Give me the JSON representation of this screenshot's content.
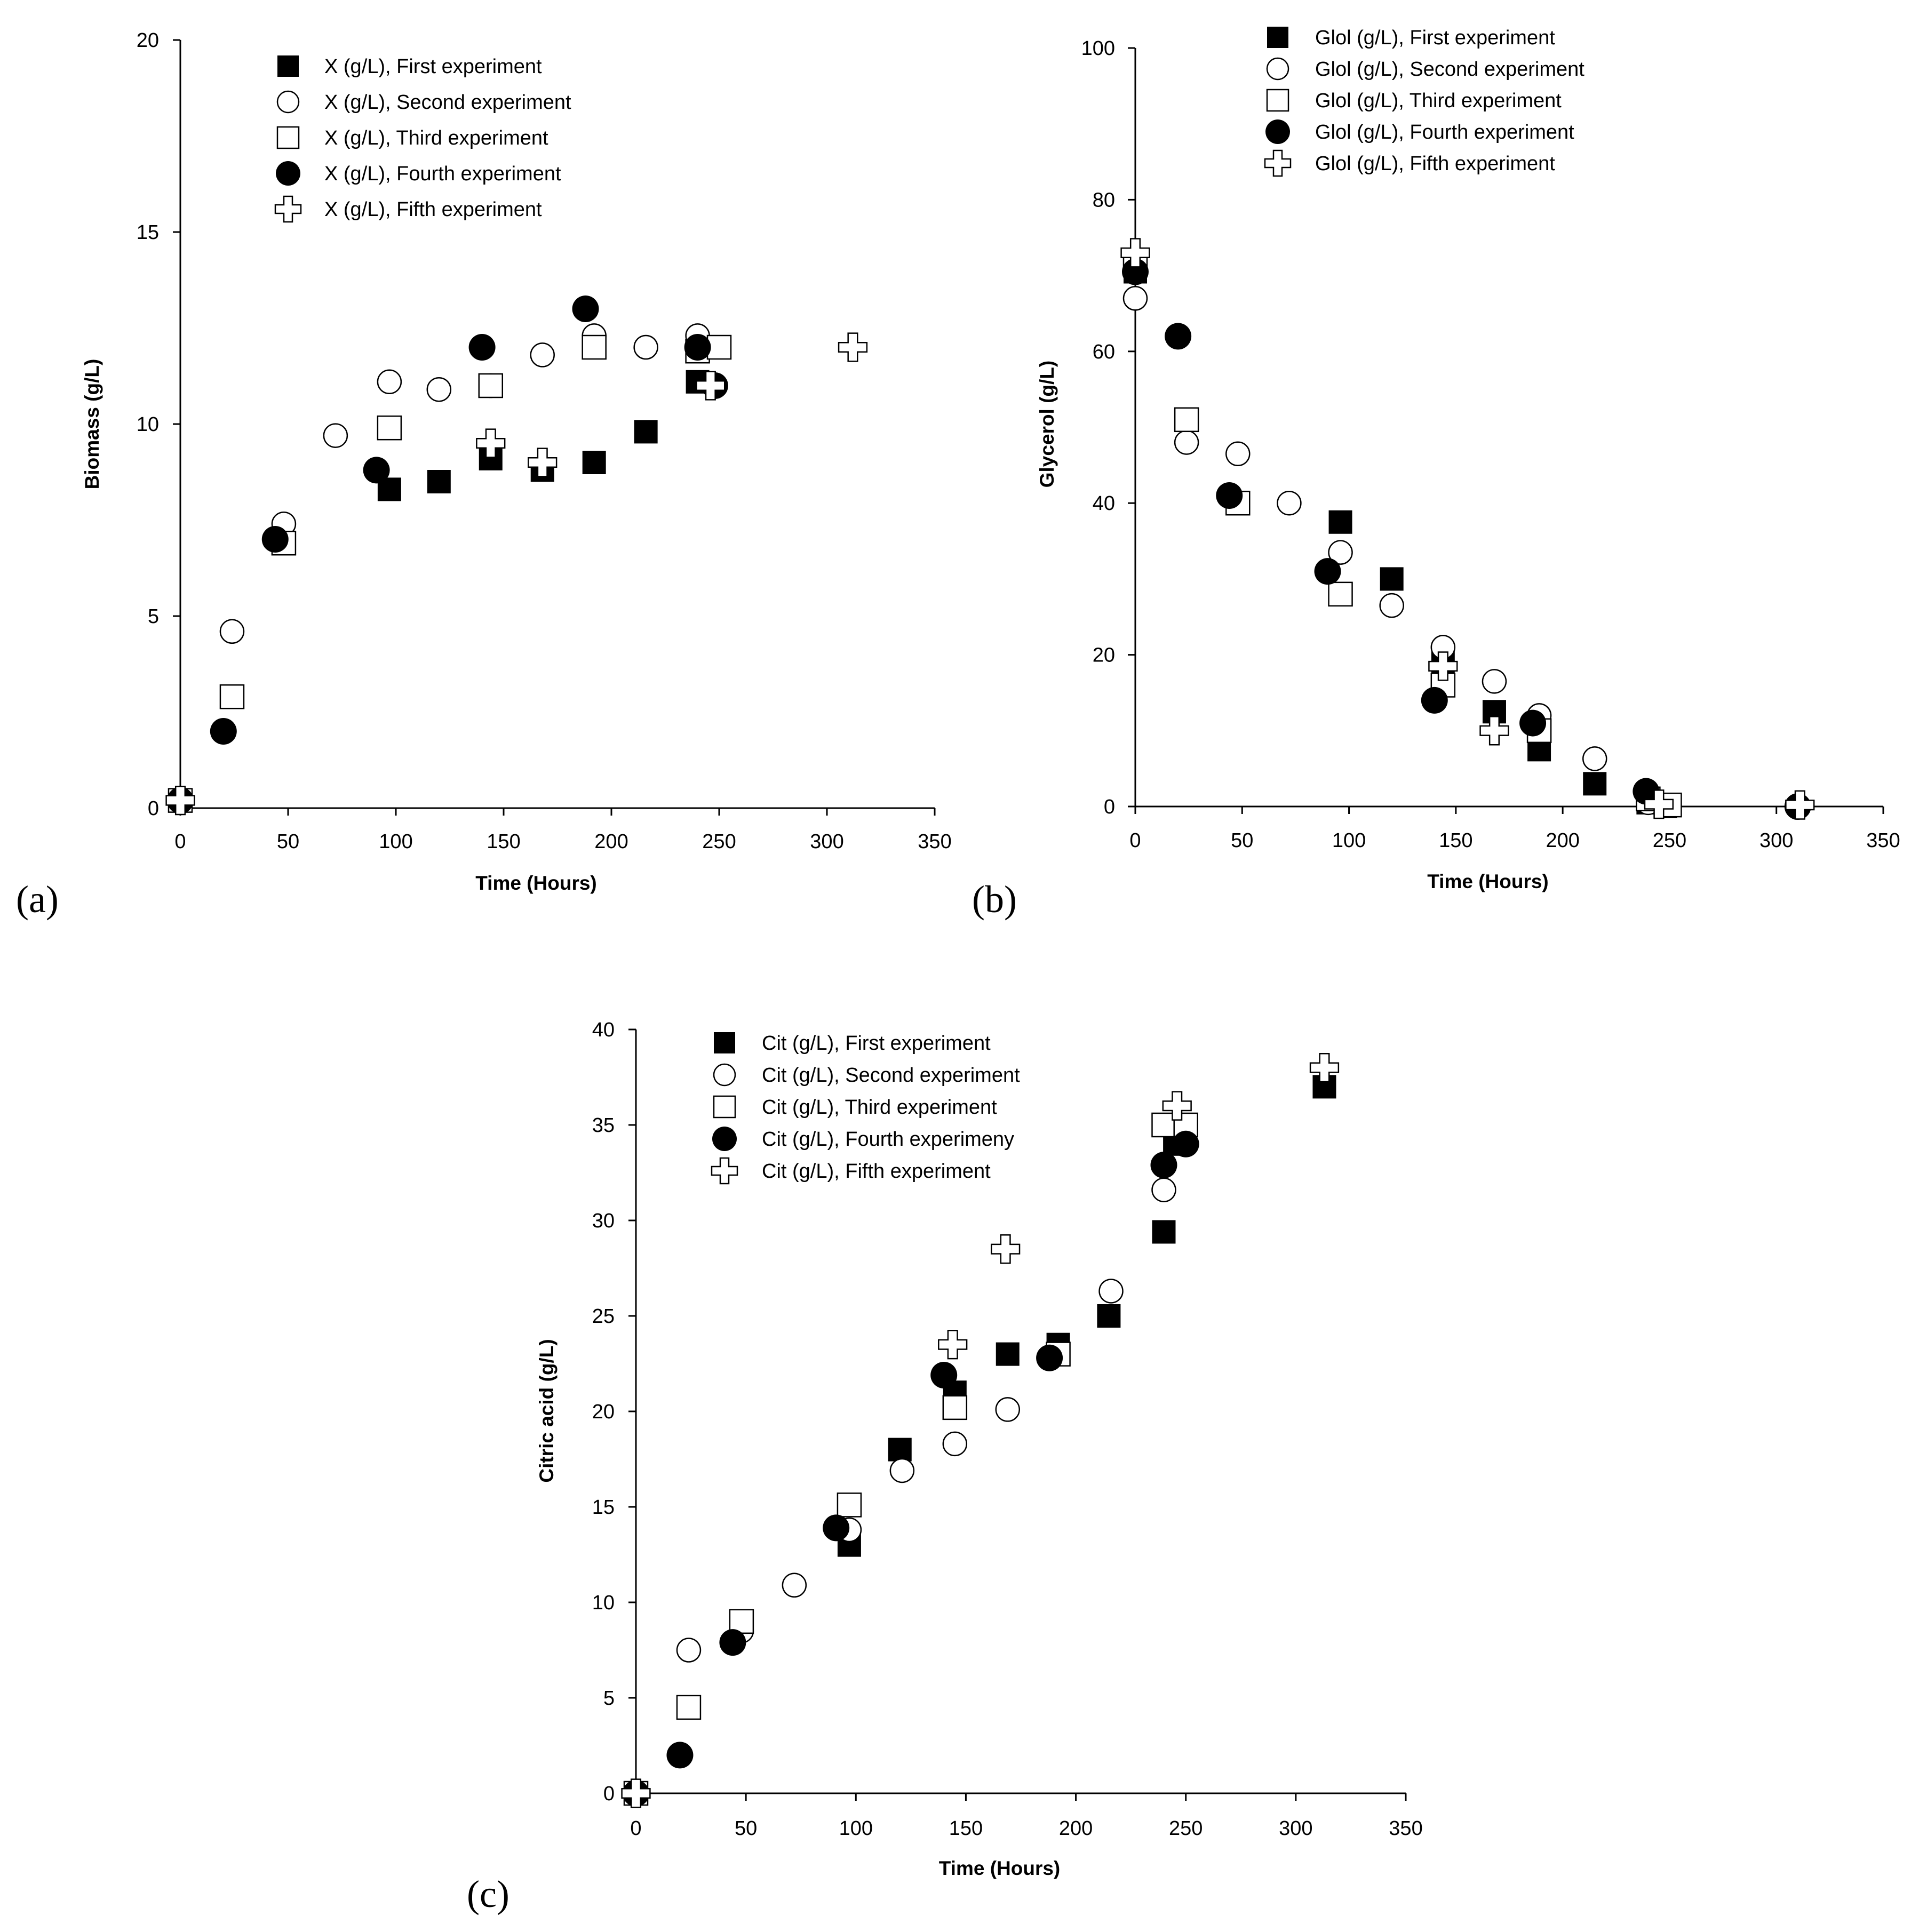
{
  "chart_data": [
    {
      "type": "scatter",
      "panel_label": "(a)",
      "xlabel": "Time (Hours)",
      "ylabel": "Biomass (g/L)",
      "xlim": [
        0,
        350
      ],
      "ylim": [
        0,
        20
      ],
      "xticks": [
        0,
        50,
        100,
        150,
        200,
        250,
        300,
        350
      ],
      "yticks": [
        0,
        5,
        10,
        15,
        20
      ],
      "legend_position": "top-left",
      "series": [
        {
          "name": "X (g/L), First experiment",
          "marker": "square-filled",
          "x": [
            0,
            97,
            120,
            144,
            168,
            192,
            216,
            240,
            248
          ],
          "y": [
            0.2,
            8.3,
            8.5,
            9.1,
            8.8,
            9.0,
            9.8,
            11.1,
            12.0
          ]
        },
        {
          "name": "X (g/L), Second experiment",
          "marker": "circle-open",
          "x": [
            0,
            24,
            48,
            72,
            97,
            120,
            144,
            168,
            192,
            216,
            240
          ],
          "y": [
            0.2,
            4.6,
            7.4,
            9.7,
            11.1,
            10.9,
            11.0,
            11.8,
            12.3,
            12.0,
            12.3
          ]
        },
        {
          "name": "X (g/L), Third experiment",
          "marker": "square-open",
          "x": [
            0,
            24,
            48,
            97,
            144,
            192,
            240,
            250
          ],
          "y": [
            0.2,
            2.9,
            6.9,
            9.9,
            11.0,
            12.0,
            11.9,
            12.0
          ]
        },
        {
          "name": "X (g/L), Fourth experiment",
          "marker": "circle-filled",
          "x": [
            0,
            20,
            44,
            91,
            140,
            188,
            240,
            248
          ],
          "y": [
            0.2,
            2.0,
            7.0,
            8.8,
            12.0,
            13.0,
            12.0,
            11.0
          ]
        },
        {
          "name": "X (g/L), Fifth experiment",
          "marker": "cross-open",
          "x": [
            0,
            144,
            168,
            246,
            312
          ],
          "y": [
            0.2,
            9.5,
            9.0,
            11.0,
            12.0
          ]
        }
      ]
    },
    {
      "type": "scatter",
      "panel_label": "(b)",
      "xlabel": "Time (Hours)",
      "ylabel": "Glycerol (g/L)",
      "xlim": [
        0,
        350
      ],
      "ylim": [
        0,
        100
      ],
      "xticks": [
        0,
        50,
        100,
        150,
        200,
        250,
        300,
        350
      ],
      "yticks": [
        0,
        20,
        40,
        60,
        80,
        100
      ],
      "legend_position": "top-right",
      "series": [
        {
          "name": "Glol (g/L), First experiment",
          "marker": "square-filled",
          "x": [
            0,
            96,
            120,
            144,
            168,
            189,
            215,
            240,
            248
          ],
          "y": [
            70.5,
            37.5,
            30.0,
            19.0,
            12.5,
            7.5,
            3.0,
            0.5,
            0.0
          ]
        },
        {
          "name": "Glol (g/L), Second experiment",
          "marker": "circle-open",
          "x": [
            0,
            24,
            48,
            72,
            96,
            120,
            144,
            168,
            189,
            215,
            240
          ],
          "y": [
            67.0,
            48.0,
            46.5,
            40.0,
            33.5,
            26.5,
            21.0,
            16.5,
            12.0,
            6.3,
            0.5
          ]
        },
        {
          "name": "Glol (g/L), Third experiment",
          "marker": "square-open",
          "x": [
            0,
            24,
            48,
            96,
            144,
            189,
            240,
            250
          ],
          "y": [
            72.0,
            51.0,
            40.0,
            28.0,
            16.0,
            10.0,
            1.0,
            0.2
          ]
        },
        {
          "name": "Glol (g/L), Fourth experiment",
          "marker": "circle-filled",
          "x": [
            0,
            20,
            44,
            90,
            140,
            186,
            239,
            310
          ],
          "y": [
            70.5,
            62.0,
            41.0,
            31.0,
            14.0,
            11.0,
            2.0,
            0.0
          ]
        },
        {
          "name": "Glol (g/L), Fifth experiment",
          "marker": "cross-open",
          "x": [
            0,
            144,
            168,
            245,
            311
          ],
          "y": [
            73.0,
            18.5,
            10.0,
            0.3,
            0.2
          ]
        }
      ]
    },
    {
      "type": "scatter",
      "panel_label": "(c)",
      "xlabel": "Time (Hours)",
      "ylabel": "Citric acid  (g/L)",
      "xlim": [
        0,
        350
      ],
      "ylim": [
        0,
        40
      ],
      "xticks": [
        0,
        50,
        100,
        150,
        200,
        250,
        300,
        350
      ],
      "yticks": [
        0,
        5,
        10,
        15,
        20,
        25,
        30,
        35,
        40
      ],
      "legend_position": "top-left",
      "series": [
        {
          "name": "Cit (g/L), First experiment",
          "marker": "square-filled",
          "x": [
            0,
            97,
            120,
            145,
            169,
            192,
            215,
            240,
            245,
            313
          ],
          "y": [
            0.0,
            13.0,
            18.0,
            21.0,
            23.0,
            23.5,
            25.0,
            29.4,
            34.0,
            37.0
          ]
        },
        {
          "name": "Cit (g/L), Second experiment",
          "marker": "circle-open",
          "x": [
            0,
            24,
            48,
            72,
            97,
            121,
            145,
            169,
            216,
            240
          ],
          "y": [
            0.0,
            7.5,
            8.5,
            10.9,
            13.8,
            16.9,
            18.3,
            20.1,
            26.3,
            31.6
          ]
        },
        {
          "name": "Cit (g/L), Third experiment",
          "marker": "square-open",
          "x": [
            0,
            24,
            48,
            97,
            145,
            192,
            240,
            250
          ],
          "y": [
            0.0,
            4.5,
            9.0,
            15.1,
            20.2,
            23.0,
            35.0,
            35.0
          ]
        },
        {
          "name": "Cit (g/L), Fourth experimeny",
          "marker": "circle-filled",
          "x": [
            0,
            20,
            44,
            91,
            140,
            188,
            240,
            250
          ],
          "y": [
            0.0,
            2.0,
            7.9,
            13.9,
            21.9,
            22.8,
            32.9,
            34.0
          ]
        },
        {
          "name": "Cit (g/L), Fifth experiment",
          "marker": "cross-open",
          "x": [
            0,
            144,
            168,
            246,
            313
          ],
          "y": [
            0.0,
            23.5,
            28.5,
            36.0,
            38.0
          ]
        }
      ]
    }
  ]
}
